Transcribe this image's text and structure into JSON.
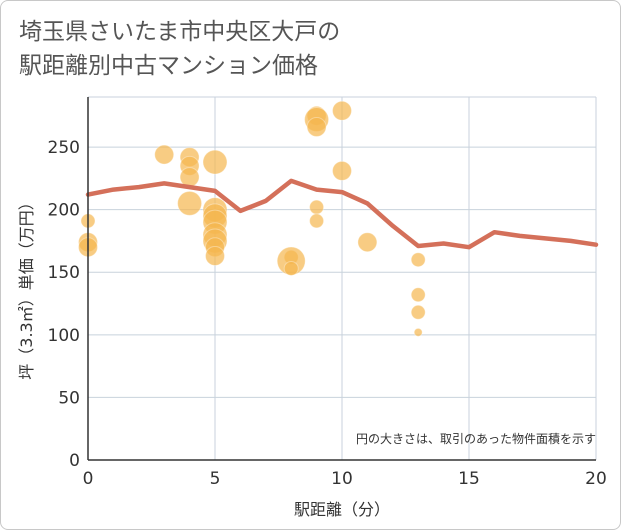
{
  "title_line1": "埼玉県さいたま市中央区大戸の",
  "title_line2": "駅距離別中古マンション価格",
  "chart_data": {
    "type": "scatter",
    "xlabel": "駅距離（分）",
    "ylabel": "坪（3.3㎡）単価（万円）",
    "xlim": [
      0,
      20
    ],
    "ylim": [
      0,
      290
    ],
    "xticks": [
      0,
      5,
      10,
      15,
      20
    ],
    "yticks": [
      0,
      50,
      100,
      150,
      200,
      250
    ],
    "grid": true,
    "note": "円の大きさは、取引のあった物件面積を示す",
    "colors": {
      "bubble": "#f5b74e",
      "line": "#d4705a",
      "grid": "#c8d2dc",
      "axis": "#333333"
    },
    "bubbles": [
      {
        "x": 0,
        "y": 191,
        "size": 1
      },
      {
        "x": 0,
        "y": 174,
        "size": 2
      },
      {
        "x": 0,
        "y": 170,
        "size": 2
      },
      {
        "x": 3,
        "y": 244,
        "size": 2
      },
      {
        "x": 4,
        "y": 242,
        "size": 2
      },
      {
        "x": 4,
        "y": 235,
        "size": 2
      },
      {
        "x": 4,
        "y": 226,
        "size": 2
      },
      {
        "x": 4,
        "y": 205,
        "size": 3
      },
      {
        "x": 5,
        "y": 238,
        "size": 3
      },
      {
        "x": 5,
        "y": 200,
        "size": 3
      },
      {
        "x": 5,
        "y": 195,
        "size": 3
      },
      {
        "x": 5,
        "y": 190,
        "size": 3
      },
      {
        "x": 5,
        "y": 180,
        "size": 3
      },
      {
        "x": 5,
        "y": 175,
        "size": 3
      },
      {
        "x": 5,
        "y": 170,
        "size": 2
      },
      {
        "x": 5,
        "y": 163,
        "size": 2
      },
      {
        "x": 8,
        "y": 162,
        "size": 1
      },
      {
        "x": 8,
        "y": 159,
        "size": 4
      },
      {
        "x": 8,
        "y": 153,
        "size": 1
      },
      {
        "x": 9,
        "y": 275,
        "size": 2
      },
      {
        "x": 9,
        "y": 272,
        "size": 3
      },
      {
        "x": 9,
        "y": 266,
        "size": 2
      },
      {
        "x": 9,
        "y": 202,
        "size": 1
      },
      {
        "x": 9,
        "y": 191,
        "size": 1
      },
      {
        "x": 10,
        "y": 279,
        "size": 2
      },
      {
        "x": 10,
        "y": 231,
        "size": 2
      },
      {
        "x": 11,
        "y": 174,
        "size": 2
      },
      {
        "x": 13,
        "y": 160,
        "size": 1
      },
      {
        "x": 13,
        "y": 132,
        "size": 1
      },
      {
        "x": 13,
        "y": 118,
        "size": 1
      },
      {
        "x": 13,
        "y": 102,
        "size": 0
      }
    ],
    "series": [
      {
        "x": [
          0,
          1,
          2,
          3,
          4,
          5,
          6,
          7,
          8,
          9,
          10,
          11,
          12,
          13,
          14,
          15,
          16,
          17,
          18,
          19,
          20
        ],
        "values": [
          212,
          216,
          218,
          221,
          218,
          215,
          199,
          207,
          223,
          216,
          214,
          205,
          187,
          171,
          173,
          170,
          182,
          179,
          177,
          175,
          172
        ]
      }
    ]
  }
}
